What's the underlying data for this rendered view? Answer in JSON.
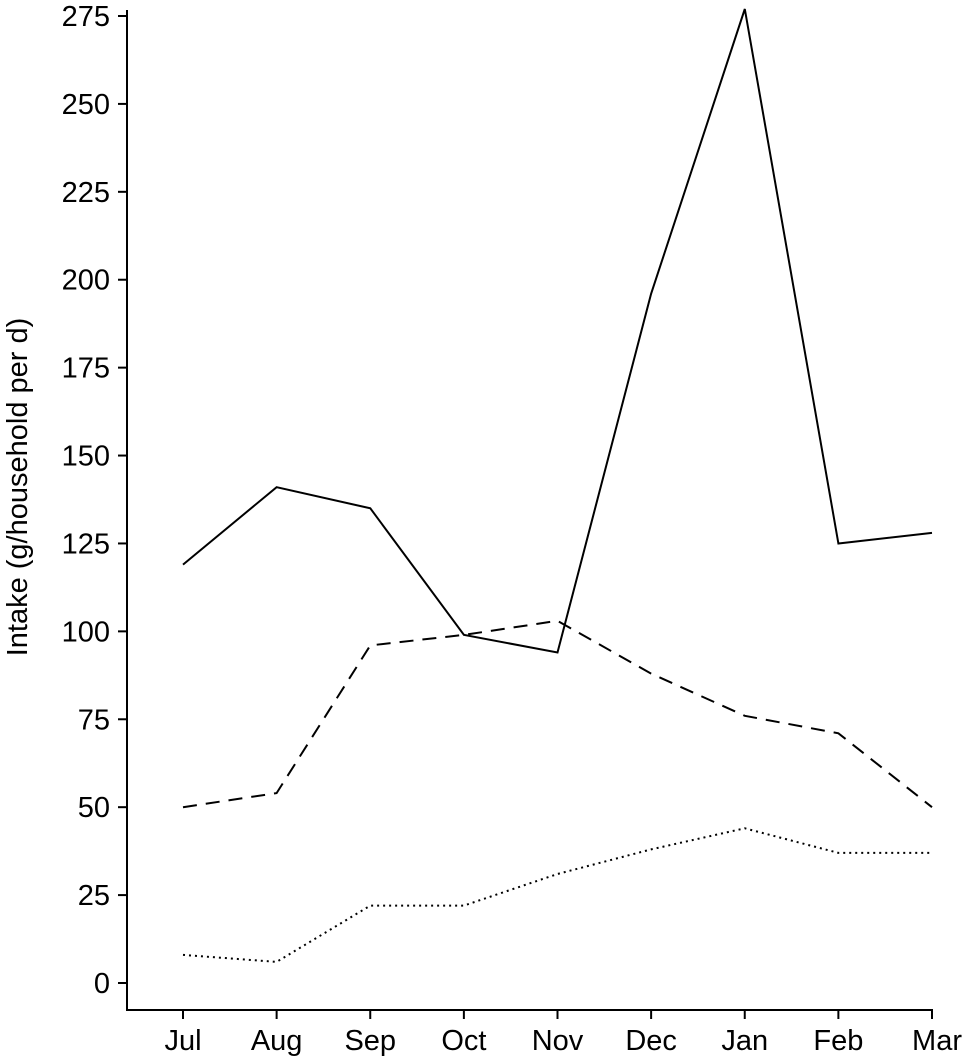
{
  "chart_data": {
    "type": "line",
    "title": "",
    "xlabel": "",
    "ylabel": "Intake (g/household per d)",
    "categories": [
      "Jul",
      "Aug",
      "Sep",
      "Oct",
      "Nov",
      "Dec",
      "Jan",
      "Feb",
      "Mar"
    ],
    "ylim": [
      0,
      275
    ],
    "yticks": [
      0,
      25,
      50,
      75,
      100,
      125,
      150,
      175,
      200,
      225,
      250,
      275
    ],
    "grid": false,
    "legend": "none",
    "series": [
      {
        "line_style": "solid",
        "color": "#000000",
        "values": [
          119,
          141,
          135,
          99,
          94,
          196,
          277,
          125,
          128
        ]
      },
      {
        "line_style": "dashed",
        "color": "#000000",
        "values": [
          50,
          54,
          96,
          99,
          103,
          88,
          76,
          71,
          50
        ]
      },
      {
        "line_style": "dotted",
        "color": "#000000",
        "values": [
          8,
          6,
          22,
          22,
          31,
          38,
          44,
          37,
          37
        ]
      }
    ]
  }
}
